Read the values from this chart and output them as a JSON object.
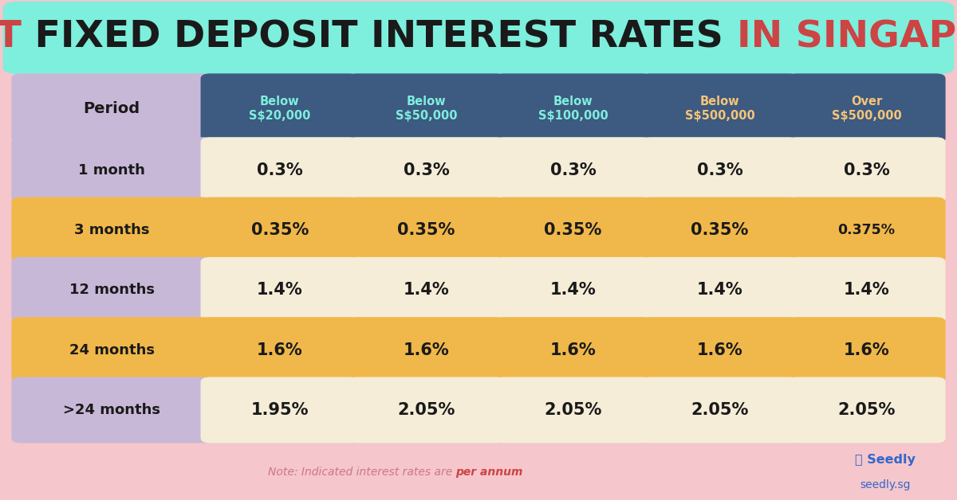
{
  "title_parts": [
    {
      "text": "BEST",
      "color": "#cc4444"
    },
    {
      "text": " FIXED DEPOSIT INTEREST RATES ",
      "color": "#1a1a1a"
    },
    {
      "text": "IN SINGAPORE",
      "color": "#cc4444"
    }
  ],
  "title_bg": "#7eeedd",
  "bg_color": "#f5c6cb",
  "header_bg": "#3d5a80",
  "header_text_color_normal": "#7eeedd",
  "header_text_color_highlight": "#f5c47a",
  "col_headers": [
    "Below\nS$20,000",
    "Below\nS$50,000",
    "Below\nS$100,000",
    "Below\nS$500,000",
    "Over\nS$500,000"
  ],
  "col_header_highlight": [
    false,
    false,
    false,
    true,
    true
  ],
  "row_labels": [
    "1 month",
    "3 months",
    "12 months",
    "24 months",
    ">24 months"
  ],
  "row_label_bg": "#c8b8d8",
  "row_label_text": "#1a1a1a",
  "data": [
    [
      "0.3%",
      "0.3%",
      "0.3%",
      "0.3%",
      "0.3%"
    ],
    [
      "0.35%",
      "0.35%",
      "0.35%",
      "0.35%",
      "0.375%"
    ],
    [
      "1.4%",
      "1.4%",
      "1.4%",
      "1.4%",
      "1.4%"
    ],
    [
      "1.6%",
      "1.6%",
      "1.6%",
      "1.6%",
      "1.6%"
    ],
    [
      "1.95%",
      "2.05%",
      "2.05%",
      "2.05%",
      "2.05%"
    ]
  ],
  "cell_bg_light": "#f5edd8",
  "cell_bg_orange": "#f0b84a",
  "row_orange": [
    false,
    true,
    false,
    true,
    false
  ],
  "data_text_color": "#1a1a1a",
  "note_text": "Note: Indicated interest rates are ",
  "note_bold": "per annum",
  "note_color": "#cc7788",
  "note_bold_color": "#cc4444",
  "seedly_color": "#3366cc",
  "period_label_color": "#1a1a1a",
  "period_header_bg": "#c8b8d8"
}
